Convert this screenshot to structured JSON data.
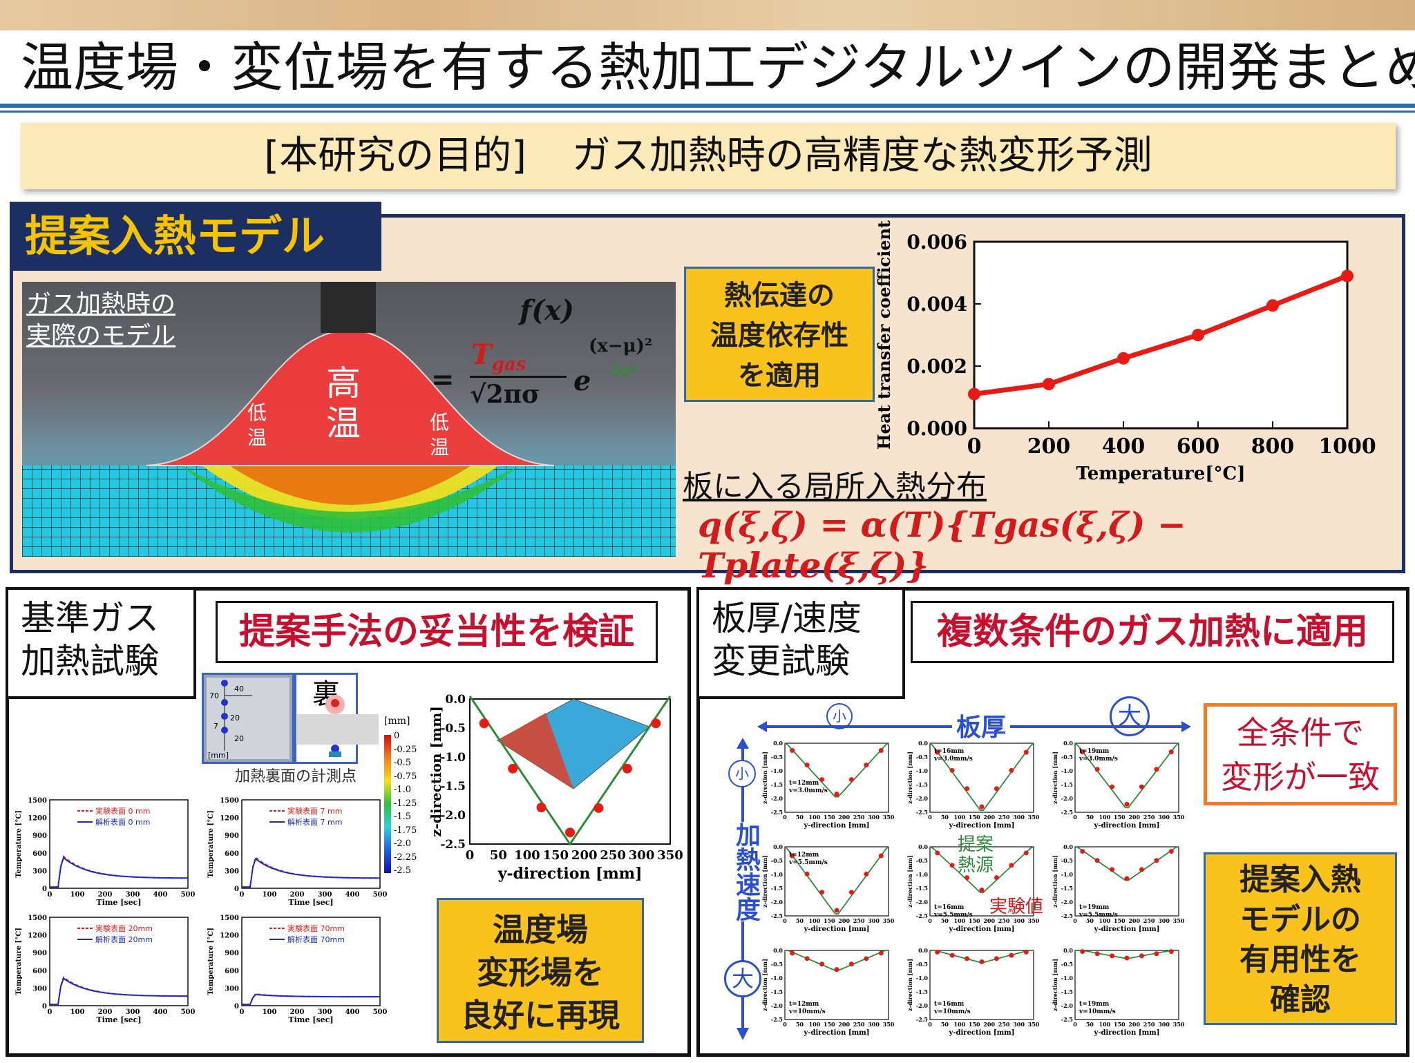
{
  "title": "温度場・変位場を有する熱加工デジタルツインの開発まとめ",
  "purpose": {
    "bracket": "[本研究の目的]",
    "text": "ガス加熱時の高精度な熱変形予測"
  },
  "model_panel": {
    "label": "提案入熱モデル",
    "sim_caption": [
      "ガス加熱時の",
      "実際のモデル"
    ],
    "high_temp": [
      "高",
      "温"
    ],
    "low_temp": [
      "低",
      "温"
    ],
    "formula_lhs": "f(x)",
    "formula_T": "T",
    "formula_gas": "gas",
    "formula_den": "√2πσ",
    "formula_exp": "(x−μ)²",
    "formula_exp_den": "2σ²",
    "htc_box": [
      "熱伝達の",
      "温度依存性",
      "を適用"
    ],
    "local_heat_label": "板に入る局所入熱分布",
    "local_heat_formula": "q(ξ,ζ) = α(T){Tgas(ξ,ζ) − Tplate(ξ,ζ)}"
  },
  "left_panel": {
    "tag": [
      "基準ガス",
      "加熱試験"
    ],
    "red_tag": "提案手法の妥当性を検証",
    "back_label": "裏",
    "measure_caption": "加熱裏面の計測点",
    "inset_labels": [
      "70",
      "40",
      "20",
      "7",
      "20",
      "[mm]"
    ],
    "colorbar_unit": "[mm]",
    "colorbar_ticks": [
      "0",
      "-0.25",
      "-0.5",
      "-0.75",
      "-1.0",
      "-1.25",
      "-1.5",
      "-1.75",
      "-2.0",
      "-2.25",
      "-2.5"
    ],
    "result_box": [
      "温度場",
      "変形場を",
      "良好に再現"
    ]
  },
  "right_panel": {
    "tag": [
      "板厚/速度",
      "変更試験"
    ],
    "red_tag": "複数条件のガス加熱に適用",
    "thickness_label": "板厚",
    "speed_label": "加熱速度",
    "small": "小",
    "large": "大",
    "agree_box": [
      "全条件で",
      "変形が一致"
    ],
    "useful_box": [
      "提案入熱",
      "モデルの",
      "有用性を",
      "確認"
    ],
    "proposed_label": [
      "提案",
      "熱源"
    ],
    "experiment_label": "実験値"
  },
  "colors": {
    "navy": "#1c2f63",
    "gold": "#f9c21c",
    "red": "#d41a1a",
    "green": "#2e8b3a",
    "blue": "#1a2bcc"
  },
  "chart_data": [
    {
      "type": "line",
      "xlabel": "Temperature[°C]",
      "ylabel": "Heat transfer coefficient",
      "x": [
        0,
        200,
        400,
        600,
        800,
        1000
      ],
      "y": [
        0.0011,
        0.00142,
        0.00225,
        0.003,
        0.00395,
        0.0049
      ],
      "xlim": [
        0,
        1000
      ],
      "ylim": [
        0,
        0.006
      ],
      "xticks": [
        "0",
        "200",
        "400",
        "600",
        "800",
        "1000"
      ],
      "yticks": [
        "0.000",
        "0.002",
        "0.004",
        "0.006"
      ],
      "color": "#e81a14"
    },
    {
      "type": "scatter",
      "xlabel": "y-direction [mm]",
      "ylabel": "z-direction [mm]",
      "xlim": [
        0,
        350
      ],
      "ylim": [
        -2.5,
        0
      ],
      "xticks": [
        "0",
        "50",
        "100",
        "150",
        "200",
        "250",
        "300",
        "350"
      ],
      "yticks": [
        "0.0",
        "-0.5",
        "-1.0",
        "-1.5",
        "-2.0",
        "-2.5"
      ],
      "experiment_x": [
        25,
        75,
        125,
        175,
        225,
        275,
        325
      ],
      "experiment_y": [
        -0.42,
        -1.2,
        -1.87,
        -2.3,
        -1.88,
        -1.2,
        -0.42
      ],
      "model_x": [
        0,
        175,
        350
      ],
      "model_y": [
        0.05,
        -2.5,
        0.05
      ]
    },
    {
      "type": "line",
      "xlabel": "Time [sec]",
      "ylabel": "Temperature [°C]",
      "xlim": [
        0,
        500
      ],
      "ylim": [
        0,
        1500
      ],
      "xticks": [
        "0",
        "100",
        "200",
        "300",
        "400",
        "500"
      ],
      "yticks": [
        "0",
        "300",
        "600",
        "900",
        "1200",
        "1500"
      ],
      "panels": [
        {
          "legend": [
            "実験表面 0 mm",
            "解析表面 0 mm"
          ],
          "peak": 560,
          "end": 170
        },
        {
          "legend": [
            "実験表面 7 mm",
            "解析表面 7 mm"
          ],
          "peak": 540,
          "end": 170
        },
        {
          "legend": [
            "実験表面 20mm",
            "解析表面 20mm"
          ],
          "peak": 500,
          "end": 160
        },
        {
          "legend": [
            "実験表面 70mm",
            "解析表面 70mm"
          ],
          "peak": 200,
          "end": 150
        }
      ]
    },
    {
      "type": "scatter",
      "xlabel": "y-direction [mm]",
      "ylabel": "z-direction [mm]",
      "xlim": [
        0,
        350
      ],
      "ylim": [
        -2.5,
        0
      ],
      "xticks": [
        "0",
        "50",
        "100",
        "150",
        "200",
        "250",
        "300",
        "350"
      ],
      "yticks": [
        "0.0",
        "-0.5",
        "-1.0",
        "-1.5",
        "-2.0",
        "-2.5"
      ],
      "conditions": [
        {
          "t": "t=12mm",
          "v": "v=3.0mm/s",
          "depth": -2.0
        },
        {
          "t": "t=16mm",
          "v": "v=3.0mm/s",
          "depth": -2.55
        },
        {
          "t": "t=19mm",
          "v": "v=3.0mm/s",
          "depth": -2.4
        },
        {
          "t": "t=12mm",
          "v": "v=5.5mm/s",
          "depth": -2.5
        },
        {
          "t": "t=16mm",
          "v": "v=5.5mm/s",
          "depth": -1.7
        },
        {
          "t": "t=19mm",
          "v": "v=5.5mm/s",
          "depth": -1.25
        },
        {
          "t": "t=12mm",
          "v": "v=10mm/s",
          "depth": -0.75
        },
        {
          "t": "t=16mm",
          "v": "v=10mm/s",
          "depth": -0.45
        },
        {
          "t": "t=19mm",
          "v": "v=10mm/s",
          "depth": -0.3
        }
      ]
    }
  ]
}
